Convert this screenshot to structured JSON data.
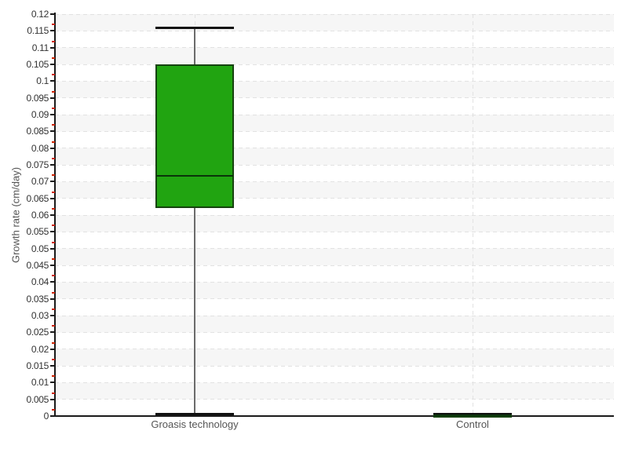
{
  "chart_data": {
    "type": "boxplot",
    "title": "",
    "xlabel": "",
    "ylabel": "Growth rate (cm/day)",
    "ylim": [
      0,
      0.12
    ],
    "ytick_step": 0.005,
    "ytick_labels": [
      "0",
      "0.005",
      "0.01",
      "0.015",
      "0.02",
      "0.025",
      "0.03",
      "0.035",
      "0.04",
      "0.045",
      "0.05",
      "0.055",
      "0.06",
      "0.065",
      "0.07",
      "0.075",
      "0.08",
      "0.085",
      "0.09",
      "0.095",
      "0.1",
      "0.105",
      "0.11",
      "0.115",
      "0.12"
    ],
    "categories": [
      "Groasis technology",
      "Control"
    ],
    "boxes": [
      {
        "category": "Groasis technology",
        "min": 0.0005,
        "q1": 0.062,
        "median": 0.0717,
        "q3": 0.105,
        "max": 0.116
      },
      {
        "category": "Control",
        "min": 0,
        "q1": 0,
        "median": 0.0003,
        "q3": 0.0005,
        "max": 0.0005
      }
    ],
    "legend": "none",
    "grid": {
      "horizontal_dashed": true,
      "vertical_dashed_at_categories": true,
      "alternating_row_bands": true
    },
    "colors": {
      "box_fill": "#21a411",
      "box_border": "#16430e",
      "median_line": "#0a330a",
      "whisker": "#6b6b6b",
      "whisker_cap": "#111111",
      "minor_tick": "#cc2200",
      "axis": "#1a1a1a",
      "band": "#f6f6f6",
      "gridline": "#e2e2e2",
      "tick_label": "#333333",
      "category_label": "#555555"
    }
  }
}
